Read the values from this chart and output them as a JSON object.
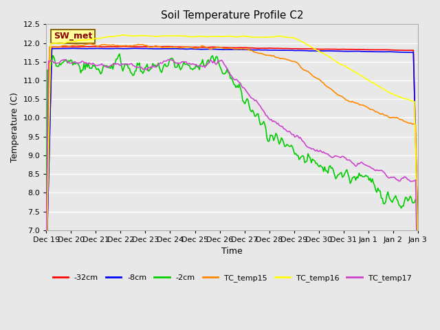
{
  "title": "Soil Temperature Profile C2",
  "xlabel": "Time",
  "ylabel": "Temperature (C)",
  "ylim": [
    7.0,
    12.5
  ],
  "yticks": [
    7.0,
    7.5,
    8.0,
    8.5,
    9.0,
    9.5,
    10.0,
    10.5,
    11.0,
    11.5,
    12.0,
    12.5
  ],
  "background_color": "#e8e8e8",
  "plot_bg_color": "#e8e8e8",
  "grid_color": "#ffffff",
  "annotation_label": "SW_met",
  "annotation_color": "#8b0000",
  "annotation_bg": "#ffff99",
  "annotation_border": "#8b6914",
  "series": {
    "neg32cm": {
      "color": "#ff0000",
      "label": "-32cm",
      "lw": 1.2
    },
    "neg8cm": {
      "color": "#0000ff",
      "label": "-8cm",
      "lw": 1.2
    },
    "neg2cm": {
      "color": "#00cc00",
      "label": "-2cm",
      "lw": 1.2
    },
    "TC15": {
      "color": "#ff8800",
      "label": "TC_temp15",
      "lw": 1.2
    },
    "TC16": {
      "color": "#ffff00",
      "label": "TC_temp16",
      "lw": 1.2
    },
    "TC17": {
      "color": "#cc44cc",
      "label": "TC_temp17",
      "lw": 1.2
    }
  },
  "xtick_labels": [
    "Dec 19",
    "Dec 20",
    "Dec 21",
    "Dec 22",
    "Dec 23",
    "Dec 24",
    "Dec 25",
    "Dec 26",
    "Dec 27",
    "Dec 28",
    "Dec 29",
    "Dec 30",
    "Dec 31",
    "Jan 1",
    "Jan 2",
    "Jan 3"
  ],
  "num_points": 336
}
